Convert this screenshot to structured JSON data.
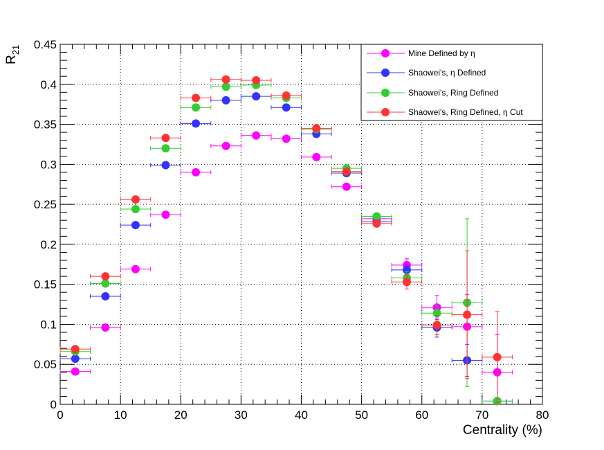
{
  "chart_data": {
    "type": "scatter",
    "xlabel": "Centrality (%)",
    "ylabel_main": "R",
    "ylabel_sub": "21",
    "xlim": [
      0,
      80
    ],
    "ylim": [
      0,
      0.45
    ],
    "x_ticks": [
      "0",
      "10",
      "20",
      "30",
      "40",
      "50",
      "60",
      "70",
      "80"
    ],
    "y_ticks": [
      "0",
      "0.05",
      "0.1",
      "0.15",
      "0.2",
      "0.25",
      "0.3",
      "0.35",
      "0.4",
      "0.45"
    ],
    "grid": true,
    "legend_position": "top-right",
    "x": [
      2.5,
      7.5,
      12.5,
      17.5,
      22.5,
      27.5,
      32.5,
      37.5,
      42.5,
      47.5,
      52.5,
      57.5,
      62.5,
      67.5,
      72.5
    ],
    "x_error": 2.5,
    "series": [
      {
        "name": "Mine Defined by η",
        "color": "#ff00ff",
        "values": [
          0.041,
          0.096,
          0.169,
          0.237,
          0.29,
          0.323,
          0.336,
          0.332,
          0.309,
          0.272,
          0.232,
          0.174,
          0.121,
          0.097,
          0.04
        ],
        "errors": [
          0.002,
          0.002,
          0.002,
          0.002,
          0.002,
          0.002,
          0.002,
          0.002,
          0.002,
          0.003,
          0.004,
          0.008,
          0.015,
          0.04,
          0.047
        ]
      },
      {
        "name": "Shaowei's, η Defined",
        "color": "#3333ff",
        "values": [
          0.057,
          0.135,
          0.224,
          0.299,
          0.351,
          0.38,
          0.385,
          0.371,
          0.338,
          0.289,
          0.228,
          0.168,
          0.096,
          0.055,
          0.004
        ],
        "errors": [
          0.002,
          0.002,
          0.002,
          0.002,
          0.002,
          0.002,
          0.002,
          0.002,
          0.002,
          0.003,
          0.004,
          0.007,
          0.012,
          0.02,
          0.003
        ]
      },
      {
        "name": "Shaowei's, Ring Defined",
        "color": "#33cc33",
        "values": [
          0.066,
          0.151,
          0.244,
          0.32,
          0.371,
          0.397,
          0.399,
          0.383,
          0.344,
          0.295,
          0.235,
          0.158,
          0.114,
          0.127,
          0.004
        ],
        "errors": [
          0.002,
          0.002,
          0.002,
          0.002,
          0.002,
          0.002,
          0.002,
          0.002,
          0.002,
          0.003,
          0.004,
          0.008,
          0.01,
          0.105,
          0.003
        ]
      },
      {
        "name": "Shaowei's, Ring Defined, η Cut",
        "color": "#ff3333",
        "values": [
          0.069,
          0.16,
          0.256,
          0.333,
          0.383,
          0.406,
          0.405,
          0.386,
          0.345,
          0.291,
          0.226,
          0.153,
          0.099,
          0.112,
          0.059
        ],
        "errors": [
          0.002,
          0.002,
          0.002,
          0.002,
          0.002,
          0.002,
          0.002,
          0.002,
          0.002,
          0.003,
          0.004,
          0.009,
          0.012,
          0.08,
          0.057
        ]
      }
    ]
  }
}
